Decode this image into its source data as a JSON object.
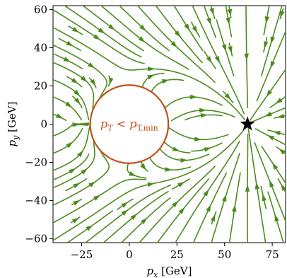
{
  "chart_data": {
    "type": "streamplot",
    "xlabel": "p_x [GeV]",
    "ylabel": "p_y [GeV]",
    "xlim": [
      -40,
      82
    ],
    "ylim": [
      -62,
      62
    ],
    "xticks": [
      -25,
      0,
      25,
      50,
      75
    ],
    "xtick_labels": [
      "−25",
      "0",
      "25",
      "50",
      "75"
    ],
    "yticks": [
      -60,
      -40,
      -20,
      0,
      20,
      40,
      60
    ],
    "ytick_labels": [
      "−60",
      "−40",
      "−20",
      "0",
      "20",
      "40",
      "60"
    ],
    "grid": false,
    "stream_color": "#4a8c1c",
    "sink": {
      "x": 62,
      "y": 0,
      "marker": "star",
      "color": "#000000"
    },
    "excluded_region": {
      "shape": "circle",
      "center": [
        0,
        0
      ],
      "radius": 20.5,
      "edge_color": "#c0501a",
      "fill": "#ffffff",
      "label_main": "p",
      "label_sub": "T",
      "label_op": " < ",
      "label_main2": "p",
      "label_sub2": "T,min",
      "label_color": "#c0501a"
    }
  }
}
